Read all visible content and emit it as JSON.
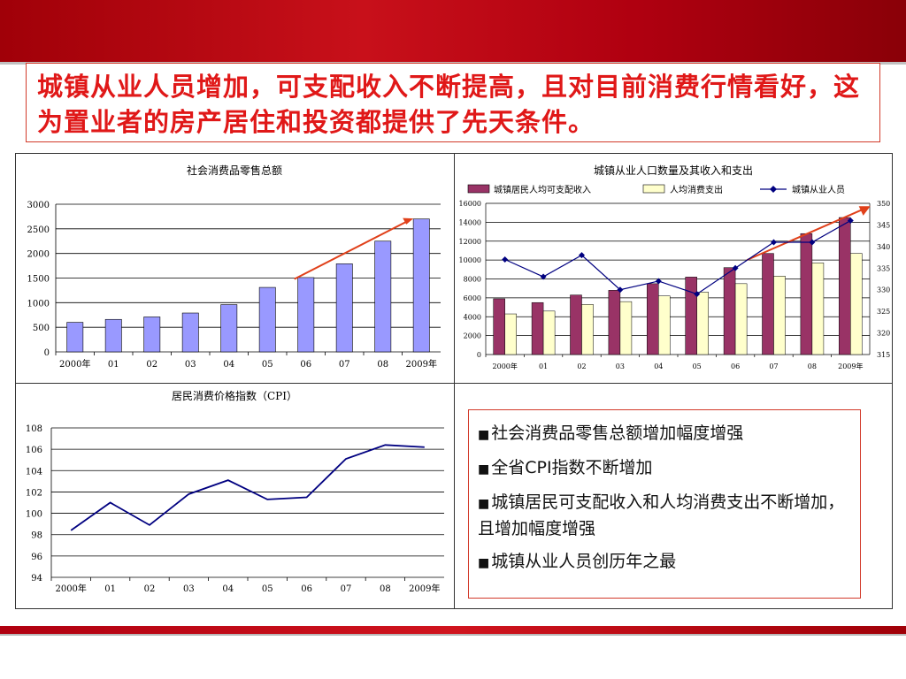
{
  "headline": "城镇从业人员增加，可支配收入不断提高，且对目前消费行情看好，这为置业者的房产居住和投资都提供了先天条件。",
  "summary_items": [
    "社会消费品零售总额增加幅度增强",
    "全省CPI指数不断增加",
    "城镇居民可支配收入和人均消费支出不断增加，且增加幅度增强",
    "城镇从业人员创历年之最"
  ],
  "bullet": "■",
  "colors": {
    "accent_red": "#e01818",
    "bar_blue": "#9999ff",
    "bar_maroon": "#993366",
    "bar_cream": "#ffffcc",
    "line_navy": "#000080",
    "arrow": "#e0401a"
  },
  "chart_data": [
    {
      "type": "bar",
      "title": "社会消费品零售总额",
      "categories": [
        "2000年",
        "01",
        "02",
        "03",
        "04",
        "05",
        "06",
        "07",
        "08",
        "2009年"
      ],
      "values": [
        600,
        660,
        710,
        790,
        960,
        1310,
        1510,
        1790,
        2250,
        2700
      ],
      "ylim": [
        0,
        3000
      ],
      "yticks": [
        0,
        500,
        1000,
        1500,
        2000,
        2500,
        3000
      ],
      "grid": true,
      "trend_arrow": true
    },
    {
      "type": "bar",
      "title": "城镇从业人口数量及其收入和支出",
      "categories": [
        "2000年",
        "01",
        "02",
        "03",
        "04",
        "05",
        "06",
        "07",
        "08",
        "2009年"
      ],
      "series": [
        {
          "name": "城镇居民人均可支配收入",
          "kind": "bar",
          "axis": "left",
          "values": [
            5900,
            5500,
            6300,
            6800,
            7500,
            8200,
            9200,
            10700,
            12800,
            14500
          ]
        },
        {
          "name": "人均消费支出",
          "kind": "bar",
          "axis": "left",
          "values": [
            4300,
            4600,
            5300,
            5600,
            6200,
            6600,
            7500,
            8300,
            9700,
            10700
          ]
        },
        {
          "name": "城镇从业人员",
          "kind": "line",
          "axis": "right",
          "values": [
            337,
            333,
            338,
            330,
            332,
            329,
            335,
            341,
            341,
            346
          ]
        }
      ],
      "ylim_left": [
        0,
        16000
      ],
      "yticks_left": [
        0,
        2000,
        4000,
        6000,
        8000,
        10000,
        12000,
        14000,
        16000
      ],
      "ylim_right": [
        315,
        350
      ],
      "yticks_right": [
        315,
        320,
        325,
        330,
        335,
        340,
        345,
        350
      ],
      "legend": "top",
      "grid": true,
      "trend_arrow": true
    },
    {
      "type": "line",
      "title": "居民消费价格指数（CPI）",
      "categories": [
        "2000年",
        "01",
        "02",
        "03",
        "04",
        "05",
        "06",
        "07",
        "08",
        "2009年"
      ],
      "values": [
        98.4,
        101.0,
        98.9,
        101.8,
        103.1,
        101.3,
        101.5,
        105.1,
        106.4,
        106.2
      ],
      "ylim": [
        94,
        108
      ],
      "yticks": [
        94,
        96,
        98,
        100,
        102,
        104,
        106,
        108
      ],
      "grid": true
    }
  ]
}
